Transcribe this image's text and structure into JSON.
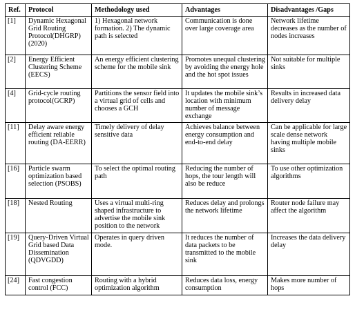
{
  "headers": {
    "ref": "Ref.",
    "protocol": "Protocol",
    "methodology": "Methodology used",
    "advantages": "Advantages",
    "disadvantages": "Disadvantages /Gaps"
  },
  "rows": [
    {
      "ref": "[1]",
      "protocol": "Dynamic Hexagonal Grid Routing Protocol(DHGRP) (2020)",
      "methodology": "1) Hexagonal network formation. 2) The dynamic path is selected",
      "advantages": "Communication is done over large coverage area",
      "disadvantages": "Network lifetime decreases as the number of nodes increases"
    },
    {
      "ref": "[2]",
      "protocol": "Energy Efficient Clustering Scheme (EECS)",
      "methodology": "An energy efficient clustering scheme for the mobile sink",
      "advantages": "Promotes unequal clustering by avoiding the energy hole and the hot spot issues",
      "disadvantages": "Not suitable for multiple sinks"
    },
    {
      "ref": "[4]",
      "protocol": "Grid-cycle routing protocol(GCRP)",
      "methodology": "Partitions the sensor field into a virtual grid of cells and chooses a GCH",
      "advantages": "It updates the mobile sink’s location with minimum number of message exchange",
      "disadvantages": "Results in increased data delivery delay"
    },
    {
      "ref": "[11]",
      "protocol": "Delay aware energy efficient reliable routing (DA-EERR)",
      "methodology": "Timely delivery of delay sensitive data",
      "advantages": "Achieves balance between energy consumption and end-to-end delay",
      "disadvantages": "Can be applicable for large scale dense network having multiple mobile sinks"
    },
    {
      "ref": "[16]",
      "protocol": "Particle swarm optimization based selection (PSOBS)",
      "methodology": "To select the optimal routing path",
      "advantages": "Reducing the number of hops, the tour length will also be reduce",
      "disadvantages": "To use other optimization algorithms"
    },
    {
      "ref": "[18]",
      "protocol": "Nested Routing",
      "methodology": "Uses a virtual multi-ring shaped infrastructure to advertise the mobile sink position to the network",
      "advantages": "Reduces delay and prolongs the network lifetime",
      "disadvantages": "Router node failure may affect the algorithm"
    },
    {
      "ref": "[19]",
      "protocol": "Query-Driven Virtual Grid based Data Dissemination (QDVGDD)",
      "methodology": "Operates in query driven mode.",
      "advantages": "It reduces the number of data packets to be transmitted to the mobile sink",
      "disadvantages": "Increases the data delivery delay"
    },
    {
      "ref": "[24]",
      "protocol": "Fast congestion control (FCC)",
      "methodology": "Routing with a hybrid optimization algorithm",
      "advantages": "Reduces data loss, energy consumption",
      "disadvantages": "Makes more number of hops"
    }
  ]
}
